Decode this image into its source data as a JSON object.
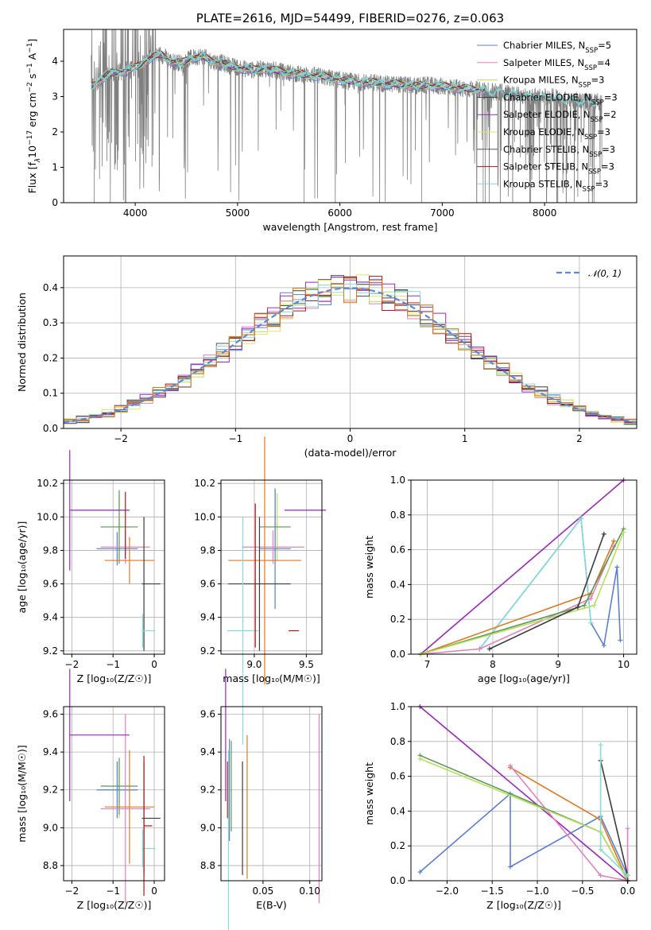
{
  "colors": {
    "Chabrier MILES": "#5b7fd6",
    "Salpeter MILES": "#e77fbf",
    "Kroupa MILES": "#b7e05a",
    "Chabrier ELODIE": "#3c3c3c",
    "Salpeter ELODIE": "#9a27c1",
    "Kroupa ELODIE": "#e3e36a",
    "Chabrier STELIB": "#555555",
    "Salpeter STELIB": "#b01515",
    "Kroupa STELIB": "#86dcd6",
    "extra_orange": "#e2781b",
    "extra_green": "#5a9a5a",
    "extra_lime": "#c8e64e"
  },
  "chart_data": [
    {
      "id": "spectrum",
      "type": "line",
      "title": "PLATE=2616, MJD=54499, FIBERID=0276, z=0.063",
      "xlabel": "wavelength [Angstrom, rest frame]",
      "ylabel_parts": [
        "Flux [f",
        "λ",
        "10",
        "−17",
        " erg cm",
        "−2",
        " s",
        "−1",
        " A",
        "−1",
        "]"
      ],
      "xlim": [
        3300,
        8900
      ],
      "ylim": [
        0,
        4.9
      ],
      "xticks": [
        "4000",
        "5000",
        "6000",
        "7000",
        "8000"
      ],
      "xtick_values": [
        4000,
        5000,
        6000,
        7000,
        8000
      ],
      "yticks": [
        "0",
        "1",
        "2",
        "3",
        "4"
      ],
      "ytick_values": [
        0,
        1,
        2,
        3,
        4
      ],
      "grid": false,
      "legend_position": "upper-right",
      "legend": [
        {
          "name": "Chabrier MILES, N",
          "sub": "SSP",
          "suffix": "=5",
          "color": "#5b7fd6"
        },
        {
          "name": "Salpeter MILES, N",
          "sub": "SSP",
          "suffix": "=4",
          "color": "#e77fbf"
        },
        {
          "name": "Kroupa MILES, N",
          "sub": "SSP",
          "suffix": "=3",
          "color": "#b7e05a"
        },
        {
          "name": "Chabrier ELODIE, N",
          "sub": "SSP",
          "suffix": "=3",
          "color": "#3c3c3c"
        },
        {
          "name": "Salpeter ELODIE, N",
          "sub": "SSP",
          "suffix": "=2",
          "color": "#9a27c1"
        },
        {
          "name": "Kroupa ELODIE, N",
          "sub": "SSP",
          "suffix": "=3",
          "color": "#e3e36a"
        },
        {
          "name": "Chabrier STELIB, N",
          "sub": "SSP",
          "suffix": "=3",
          "color": "#555555"
        },
        {
          "name": "Salpeter STELIB, N",
          "sub": "SSP",
          "suffix": "=3",
          "color": "#b01515"
        },
        {
          "name": "Kroupa STELIB, N",
          "sub": "SSP",
          "suffix": "=3",
          "color": "#86dcd6"
        }
      ],
      "continuum": {
        "x": [
          3570,
          3650,
          3750,
          3850,
          3950,
          4050,
          4150,
          4250,
          4350,
          4450,
          4550,
          4650,
          4750,
          4850,
          4950,
          5050,
          5150,
          5250,
          5350,
          5450,
          5550,
          5650,
          5750,
          5850,
          5950,
          6050,
          6150,
          6250,
          6350,
          6450,
          6550,
          6650,
          6750,
          6850,
          6950,
          7050,
          7150,
          7250,
          7350,
          7450,
          7550,
          7650,
          7750,
          7850,
          7950,
          8050,
          8150,
          8250,
          8350,
          8450,
          8550
        ],
        "y": [
          3.3,
          3.45,
          3.65,
          3.7,
          3.75,
          3.9,
          4.1,
          4.2,
          4.0,
          3.95,
          4.1,
          4.15,
          4.0,
          3.95,
          3.85,
          3.8,
          3.75,
          3.8,
          3.75,
          3.7,
          3.65,
          3.62,
          3.6,
          3.55,
          3.5,
          3.45,
          3.42,
          3.4,
          3.4,
          3.35,
          3.35,
          3.33,
          3.3,
          3.32,
          3.3,
          3.28,
          3.25,
          3.22,
          3.2,
          3.15,
          3.12,
          3.1,
          3.05,
          3.0,
          3.0,
          3.0,
          2.95,
          2.9,
          2.88,
          2.85,
          2.85
        ]
      },
      "data_wavelength_range": [
        3570,
        8560
      ],
      "model_wavelength_range": [
        3570,
        7420
      ]
    },
    {
      "id": "residuals",
      "type": "histogram",
      "xlabel": "(data-model)/error",
      "ylabel": "Normed distribution",
      "xlim": [
        -2.5,
        2.5
      ],
      "ylim": [
        0,
        0.49
      ],
      "xticks": [
        "−2",
        "−1",
        "0",
        "1",
        "2"
      ],
      "xtick_values": [
        -2,
        -1,
        0,
        1,
        2
      ],
      "yticks": [
        "0.0",
        "0.1",
        "0.2",
        "0.3",
        "0.4"
      ],
      "ytick_values": [
        0,
        0.1,
        0.2,
        0.3,
        0.4
      ],
      "grid": true,
      "legend_position": "upper-right",
      "legend_label": "𝒩(0, 1)",
      "reference_curve": {
        "name": "𝒩(0, 1)",
        "mean": 0,
        "sigma": 1,
        "color": "#5b8ad2",
        "style": "dashed"
      },
      "bin_edges_range": [
        -2.5,
        2.5
      ],
      "bin_count": 45
    },
    {
      "id": "age_vs_Z",
      "type": "errorbar",
      "xlabel": "Z [log₁₀(Z/Z☉)]",
      "ylabel": "age  [log₁₀(age/yr)]",
      "xlim": [
        -2.2,
        0.25
      ],
      "ylim": [
        9.18,
        10.22
      ],
      "xticks": [
        "−2",
        "−1",
        "0"
      ],
      "xtick_values": [
        -2,
        -1,
        0
      ],
      "yticks": [
        "9.2",
        "9.4",
        "9.6",
        "9.8",
        "10.0",
        "10.2"
      ],
      "ytick_values": [
        9.2,
        9.4,
        9.6,
        9.8,
        10.0,
        10.2
      ],
      "grid": true,
      "points": [
        {
          "x": -0.85,
          "xerr": 0.45,
          "y": 9.94,
          "yerr": 0.2,
          "color": "#b7e05a"
        },
        {
          "x": -0.85,
          "xerr": 0.45,
          "y": 9.94,
          "yerr": 0.22,
          "color": "#5a9a5a"
        },
        {
          "x": -0.9,
          "xerr": 0.5,
          "y": 9.81,
          "yerr": 0.1,
          "color": "#5b7fd6"
        },
        {
          "x": -0.7,
          "xerr": 0.6,
          "y": 9.82,
          "yerr": 0.1,
          "color": "#e77fbf"
        },
        {
          "x": -0.6,
          "xerr": 0.6,
          "y": 9.74,
          "yerr": 0.14,
          "color": "#e2781b"
        },
        {
          "x": -2.05,
          "xerr": 0,
          "y": 10.04,
          "yerr": 0.36,
          "color": "#9a27c1",
          "xplus": 1.45
        },
        {
          "x": -0.25,
          "xerr": 0.05,
          "y": 9.6,
          "yerr": 0.4,
          "color": "#3c3c3c",
          "xplus": 0.4
        },
        {
          "x": -0.28,
          "xerr": 0.02,
          "y": 9.32,
          "yerr": 0.1,
          "color": "#86dcd6",
          "xplus": 0.3
        },
        {
          "x": -0.7,
          "xerr": 0,
          "y": 9.95,
          "yerr": 0.2,
          "color": "#b01515"
        }
      ]
    },
    {
      "id": "age_vs_mass",
      "type": "errorbar",
      "xlabel": "mass [log₁₀(M/M☉)]",
      "ylabel": "",
      "xlim": [
        8.68,
        9.65
      ],
      "ylim": [
        9.18,
        10.22
      ],
      "xticks": [
        "9.0",
        "9.5"
      ],
      "xtick_values": [
        9.0,
        9.5
      ],
      "yticks": [
        "9.2",
        "9.4",
        "9.6",
        "9.8",
        "10.0",
        "10.2"
      ],
      "ytick_values": [
        9.2,
        9.4,
        9.6,
        9.8,
        10.0,
        10.2
      ],
      "grid": true,
      "points": [
        {
          "x": 9.22,
          "xerr": 0.12,
          "y": 9.94,
          "yerr": 0.2,
          "color": "#b7e05a"
        },
        {
          "x": 9.2,
          "xerr": 0.15,
          "y": 9.94,
          "yerr": 0.22,
          "color": "#5a9a5a"
        },
        {
          "x": 9.2,
          "xerr": 0.15,
          "y": 9.81,
          "yerr": 0.36,
          "color": "#5b7fd6"
        },
        {
          "x": 9.18,
          "xerr": 0.3,
          "y": 9.82,
          "yerr": 0.1,
          "color": "#e77fbf"
        },
        {
          "x": 9.1,
          "xerr": 0.35,
          "y": 9.74,
          "yerr": 0.74,
          "color": "#e2781b"
        },
        {
          "x": 9.49,
          "xerr": 0.2,
          "y": 10.04,
          "yerr": 0.0,
          "color": "#9a27c1"
        },
        {
          "x": 9.05,
          "xerr": 0.3,
          "y": 9.6,
          "yerr": 0.4,
          "color": "#3c3c3c"
        },
        {
          "x": 8.89,
          "xerr": 0.15,
          "y": 9.32,
          "yerr": 0.68,
          "color": "#86dcd6"
        },
        {
          "x": 9.01,
          "xerr": 0.0,
          "y": 9.65,
          "yerr": 0.43,
          "color": "#b01515"
        },
        {
          "x": 9.38,
          "xerr": 0.05,
          "y": 9.32,
          "yerr": 0.0,
          "color": "#b01515"
        }
      ]
    },
    {
      "id": "weight_vs_age",
      "type": "line",
      "xlabel": "age  [log₁₀(age/yr)]",
      "ylabel": "mass weight",
      "xlim": [
        6.75,
        10.2
      ],
      "ylim": [
        0,
        1.0
      ],
      "xticks": [
        "7",
        "8",
        "9",
        "10"
      ],
      "xtick_values": [
        7,
        8,
        9,
        10
      ],
      "yticks": [
        "0.0",
        "0.2",
        "0.4",
        "0.6",
        "0.8",
        "1.0"
      ],
      "ytick_values": [
        0,
        0.2,
        0.4,
        0.6,
        0.8,
        1.0
      ],
      "grid": true,
      "series": [
        {
          "color": "#9a27c1",
          "x": [
            6.9,
            10.0
          ],
          "y": [
            0.0,
            1.0
          ]
        },
        {
          "color": "#5b7fd6",
          "x": [
            7.8,
            9.35,
            9.5,
            9.7,
            9.9,
            9.95
          ],
          "y": [
            0.03,
            0.78,
            0.18,
            0.05,
            0.5,
            0.08
          ]
        },
        {
          "color": "#86dcd6",
          "x": [
            7.8,
            9.35,
            9.5
          ],
          "y": [
            0.03,
            0.78,
            0.18
          ]
        },
        {
          "color": "#e2781b",
          "x": [
            6.9,
            9.5,
            9.85
          ],
          "y": [
            0.0,
            0.35,
            0.65
          ]
        },
        {
          "color": "#e77fbf",
          "x": [
            6.9,
            7.8,
            9.5,
            9.85
          ],
          "y": [
            0.0,
            0.03,
            0.32,
            0.62
          ]
        },
        {
          "color": "#5a9a5a",
          "x": [
            6.9,
            9.4,
            10.0
          ],
          "y": [
            0.0,
            0.28,
            0.72
          ]
        },
        {
          "color": "#b7e05a",
          "x": [
            6.9,
            9.55,
            10.0
          ],
          "y": [
            0.0,
            0.28,
            0.7
          ]
        },
        {
          "color": "#3c3c3c",
          "x": [
            7.95,
            9.3,
            9.7
          ],
          "y": [
            0.03,
            0.27,
            0.69
          ]
        }
      ]
    },
    {
      "id": "mass_vs_Z",
      "type": "errorbar",
      "xlabel": "Z [log₁₀(Z/Z☉)]",
      "ylabel": "mass [log₁₀(M/M☉)]",
      "xlim": [
        -2.2,
        0.25
      ],
      "ylim": [
        8.72,
        9.64
      ],
      "xticks": [
        "−2",
        "−1",
        "0"
      ],
      "xtick_values": [
        -2,
        -1,
        0
      ],
      "yticks": [
        "8.8",
        "9.0",
        "9.2",
        "9.4",
        "9.6"
      ],
      "ytick_values": [
        8.8,
        9.0,
        9.2,
        9.4,
        9.6
      ],
      "grid": true,
      "points": [
        {
          "x": -0.85,
          "xerr": 0.45,
          "y": 9.2,
          "yerr": 0.15,
          "color": "#b7e05a"
        },
        {
          "x": -0.85,
          "xerr": 0.45,
          "y": 9.22,
          "yerr": 0.15,
          "color": "#5a9a5a"
        },
        {
          "x": -0.9,
          "xerr": 0.5,
          "y": 9.2,
          "yerr": 0.15,
          "color": "#5b7fd6"
        },
        {
          "x": -0.7,
          "xerr": 0.6,
          "y": 9.1,
          "yerr": 0.5,
          "color": "#e77fbf"
        },
        {
          "x": -0.6,
          "xerr": 0.6,
          "y": 9.11,
          "yerr": 0.3,
          "color": "#e2781b"
        },
        {
          "x": -2.05,
          "xerr": 0,
          "y": 9.49,
          "yerr": 0.35,
          "color": "#9a27c1",
          "xplus": 1.45
        },
        {
          "x": -0.25,
          "xerr": 0.05,
          "y": 9.05,
          "yerr": 0.3,
          "color": "#3c3c3c",
          "xplus": 0.4
        },
        {
          "x": -0.28,
          "xerr": 0.02,
          "y": 8.89,
          "yerr": 0.1,
          "color": "#86dcd6",
          "xplus": 0.3
        },
        {
          "x": -0.25,
          "xerr": 0.0,
          "y": 9.01,
          "yerr": 0.37,
          "color": "#b01515",
          "xplus": 0.2
        }
      ]
    },
    {
      "id": "mass_vs_ebv",
      "type": "errorbar",
      "xlabel": "E(B-V)",
      "ylabel": "",
      "xlim": [
        0.005,
        0.113
      ],
      "ylim": [
        8.72,
        9.64
      ],
      "xticks": [
        "0.05",
        "0.10"
      ],
      "xtick_values": [
        0.05,
        0.1
      ],
      "yticks": [
        "8.8",
        "9.0",
        "9.2",
        "9.4",
        "9.6"
      ],
      "ytick_values": [
        8.8,
        9.0,
        9.2,
        9.4,
        9.6
      ],
      "grid": true,
      "points": [
        {
          "x": 0.01,
          "y": 9.49,
          "yerr": 0.35,
          "color": "#9a27c1"
        },
        {
          "x": 0.012,
          "y": 9.2,
          "yerr": 0.15,
          "color": "#b01515"
        },
        {
          "x": 0.013,
          "y": 8.89,
          "yerr": 0.52,
          "color": "#86dcd6"
        },
        {
          "x": 0.014,
          "y": 9.2,
          "yerr": 0.27,
          "color": "#5b7fd6"
        },
        {
          "x": 0.016,
          "y": 9.22,
          "yerr": 0.24,
          "color": "#5a9a5a"
        },
        {
          "x": 0.028,
          "y": 9.05,
          "yerr": 0.3,
          "color": "#3c3c3c"
        },
        {
          "x": 0.033,
          "y": 9.11,
          "yerr": 0.38,
          "color": "#e2781b"
        },
        {
          "x": 0.11,
          "y": 9.1,
          "yerr": 0.5,
          "color": "#e77fbf"
        }
      ]
    },
    {
      "id": "weight_vs_Z",
      "type": "line",
      "xlabel": "Z [log₁₀(Z/Z☉)]",
      "ylabel": "mass weight",
      "xlim": [
        -2.4,
        0.1
      ],
      "ylim": [
        0,
        1.0
      ],
      "xticks": [
        "−2.0",
        "−1.5",
        "−1.0",
        "−0.5",
        "0.0"
      ],
      "xtick_values": [
        -2.0,
        -1.5,
        -1.0,
        -0.5,
        0.0
      ],
      "yticks": [
        "0.0",
        "0.2",
        "0.4",
        "0.6",
        "0.8",
        "1.0"
      ],
      "ytick_values": [
        0,
        0.2,
        0.4,
        0.6,
        0.8,
        1.0
      ],
      "grid": true,
      "series": [
        {
          "color": "#9a27c1",
          "x": [
            -2.3,
            0.0
          ],
          "y": [
            1.0,
            0.0
          ]
        },
        {
          "color": "#5b7fd6",
          "x": [
            -2.3,
            -1.3,
            -1.3,
            -0.3,
            0.0
          ],
          "y": [
            0.05,
            0.5,
            0.08,
            0.37,
            0.03
          ]
        },
        {
          "color": "#e2781b",
          "x": [
            -1.3,
            -0.3,
            0.0
          ],
          "y": [
            0.65,
            0.35,
            0.0
          ]
        },
        {
          "color": "#e77fbf",
          "x": [
            -1.3,
            -0.3,
            0.0,
            0.0
          ],
          "y": [
            0.66,
            0.03,
            0.0,
            0.3
          ]
        },
        {
          "color": "#5a9a5a",
          "x": [
            -2.3,
            -0.3,
            0.0
          ],
          "y": [
            0.72,
            0.28,
            0.0
          ]
        },
        {
          "color": "#b7e05a",
          "x": [
            -2.3,
            -0.3,
            0.0
          ],
          "y": [
            0.7,
            0.28,
            0.0
          ]
        },
        {
          "color": "#3c3c3c",
          "x": [
            -0.3,
            0.0,
            0.0
          ],
          "y": [
            0.69,
            0.03,
            0.0
          ]
        },
        {
          "color": "#86dcd6",
          "x": [
            -0.3,
            -0.3,
            0.0
          ],
          "y": [
            0.78,
            0.18,
            0.03
          ]
        }
      ]
    }
  ]
}
